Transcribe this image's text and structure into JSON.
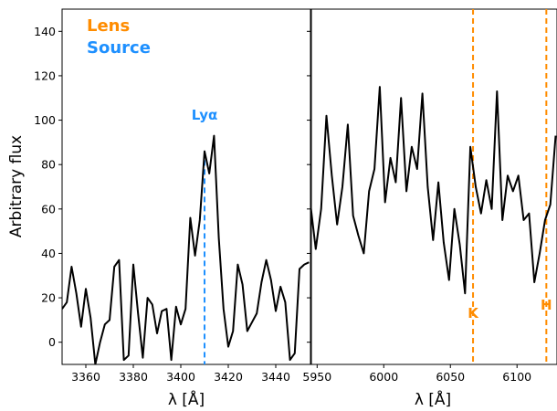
{
  "chart_data": [
    {
      "type": "line",
      "panel": "left",
      "xlabel": "λ [Å]",
      "ylabel": "Arbitrary flux",
      "xlim": [
        3350,
        3455
      ],
      "ylim": [
        -10,
        150
      ],
      "xticks": [
        3360,
        3380,
        3400,
        3420,
        3440
      ],
      "yticks": [
        0,
        20,
        40,
        60,
        80,
        100,
        120,
        140
      ],
      "legend": [
        {
          "label": "Lens",
          "color": "#ff8c00"
        },
        {
          "label": "Source",
          "color": "#1e90ff"
        }
      ],
      "series": [
        {
          "color": "#000000",
          "x": [
            3350,
            3352,
            3354,
            3356,
            3358,
            3360,
            3362,
            3364,
            3366,
            3368,
            3370,
            3372,
            3374,
            3376,
            3378,
            3380,
            3382,
            3384,
            3386,
            3388,
            3390,
            3392,
            3394,
            3396,
            3398,
            3400,
            3402,
            3404,
            3406,
            3408,
            3410,
            3412,
            3414,
            3416,
            3418,
            3420,
            3422,
            3424,
            3426,
            3428,
            3430,
            3432,
            3434,
            3436,
            3438,
            3440,
            3442,
            3444,
            3446,
            3448,
            3450,
            3452,
            3454
          ],
          "y": [
            15,
            18,
            34,
            22,
            7,
            24,
            11,
            -10,
            0,
            8,
            10,
            34,
            37,
            -8,
            -6,
            35,
            13,
            -7,
            20,
            17,
            4,
            14,
            15,
            -8,
            16,
            8,
            15,
            56,
            39,
            55,
            86,
            76,
            93,
            47,
            15,
            -2,
            5,
            35,
            26,
            5,
            9,
            13,
            27,
            37,
            28,
            14,
            25,
            18,
            -8,
            -5,
            33,
            35,
            36
          ]
        }
      ],
      "vlines": [
        {
          "x": 3410,
          "label": "Lyα",
          "color": "#1e90ff",
          "style": "dashed"
        }
      ]
    },
    {
      "type": "line",
      "panel": "right",
      "xlabel": "λ [Å]",
      "xlim": [
        5945,
        6130
      ],
      "ylim": [
        -10,
        150
      ],
      "xticks": [
        5950,
        6000,
        6050,
        6100
      ],
      "series": [
        {
          "color": "#000000",
          "x": [
            5945,
            5949,
            5953,
            5957,
            5961,
            5965,
            5969,
            5973,
            5977,
            5981,
            5985,
            5989,
            5993,
            5997,
            6001,
            6005,
            6009,
            6013,
            6017,
            6021,
            6025,
            6029,
            6033,
            6037,
            6041,
            6045,
            6049,
            6053,
            6057,
            6061,
            6065,
            6069,
            6073,
            6077,
            6081,
            6085,
            6089,
            6093,
            6097,
            6101,
            6105,
            6109,
            6113,
            6117,
            6121,
            6125,
            6129
          ],
          "y": [
            62,
            42,
            60,
            102,
            75,
            53,
            70,
            98,
            57,
            48,
            40,
            68,
            78,
            115,
            63,
            83,
            72,
            110,
            68,
            88,
            78,
            112,
            70,
            46,
            72,
            45,
            28,
            60,
            44,
            22,
            88,
            70,
            58,
            73,
            60,
            113,
            55,
            75,
            68,
            75,
            55,
            58,
            27,
            40,
            55,
            62,
            93
          ]
        }
      ],
      "vlines": [
        {
          "x": 6067,
          "label": "K",
          "color": "#ff8c00",
          "style": "dashed"
        },
        {
          "x": 6122,
          "label": "H",
          "color": "#ff8c00",
          "style": "dashed"
        }
      ]
    }
  ]
}
